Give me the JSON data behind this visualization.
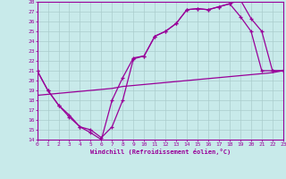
{
  "xlabel": "Windchill (Refroidissement éolien,°C)",
  "background_color": "#c8eaea",
  "line_color": "#990099",
  "grid_color": "#aacccc",
  "xlim": [
    0,
    23
  ],
  "ylim": [
    14,
    28
  ],
  "yticks": [
    14,
    15,
    16,
    17,
    18,
    19,
    20,
    21,
    22,
    23,
    24,
    25,
    26,
    27,
    28
  ],
  "xticks": [
    0,
    1,
    2,
    3,
    4,
    5,
    6,
    7,
    8,
    9,
    10,
    11,
    12,
    13,
    14,
    15,
    16,
    17,
    18,
    19,
    20,
    21,
    22,
    23
  ],
  "line1_x": [
    0,
    1,
    2,
    3,
    4,
    5,
    6,
    7,
    8,
    9,
    10,
    11,
    12,
    13,
    14,
    15,
    16,
    17,
    18,
    19,
    20,
    21,
    22,
    23
  ],
  "line1_y": [
    21,
    19,
    17.5,
    16.3,
    15.3,
    14.7,
    14,
    18,
    20.3,
    22.3,
    22.5,
    24.5,
    25,
    25.8,
    27.2,
    27.3,
    27.2,
    27.5,
    27.8,
    28.2,
    26.3,
    25,
    21,
    21
  ],
  "line2_x": [
    0,
    1,
    2,
    3,
    4,
    5,
    6,
    7,
    8,
    9,
    10,
    11,
    12,
    13,
    14,
    15,
    16,
    17,
    18,
    19,
    20,
    21,
    22,
    23
  ],
  "line2_y": [
    21,
    19,
    17.5,
    16.5,
    15.3,
    15.0,
    14.2,
    15.3,
    18.0,
    22.2,
    22.5,
    24.5,
    25.0,
    25.8,
    27.2,
    27.3,
    27.2,
    27.5,
    27.8,
    26.5,
    25.0,
    21,
    21,
    21
  ],
  "line3_x": [
    0,
    1,
    2,
    3,
    4,
    5,
    6,
    7,
    8,
    9,
    10,
    11,
    12,
    13,
    14,
    15,
    16,
    17,
    18,
    19,
    20,
    21,
    22,
    23
  ],
  "line3_y": [
    18.5,
    18.6,
    18.7,
    18.8,
    18.9,
    19.0,
    19.1,
    19.2,
    19.4,
    19.5,
    19.6,
    19.7,
    19.8,
    19.9,
    20.0,
    20.1,
    20.2,
    20.3,
    20.4,
    20.5,
    20.6,
    20.7,
    20.8,
    21.0
  ]
}
